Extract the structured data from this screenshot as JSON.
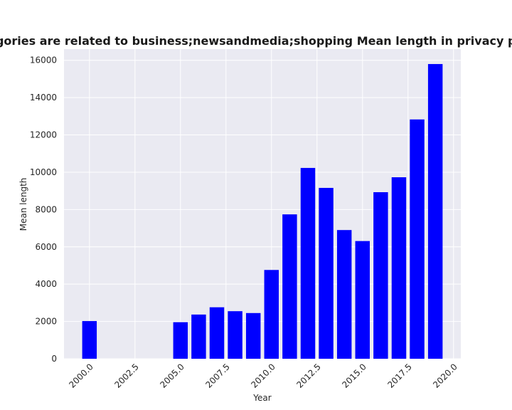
{
  "chart_data": {
    "type": "bar",
    "title": "n categories are related to business;newsandmedia;shopping Mean length in privacy policies b",
    "xlabel": "Year",
    "ylabel": "Mean length",
    "xlim": [
      1998.6,
      2020.4
    ],
    "ylim": [
      0,
      16600
    ],
    "xticks": [
      2000.0,
      2002.5,
      2005.0,
      2007.5,
      2010.0,
      2012.5,
      2015.0,
      2017.5,
      2020.0
    ],
    "xtick_labels": [
      "2000.0",
      "2002.5",
      "2005.0",
      "2007.5",
      "2010.0",
      "2012.5",
      "2015.0",
      "2017.5",
      "2020.0"
    ],
    "yticks": [
      0,
      2000,
      4000,
      6000,
      8000,
      10000,
      12000,
      14000,
      16000
    ],
    "ytick_labels": [
      "0",
      "2000",
      "4000",
      "6000",
      "8000",
      "10000",
      "12000",
      "14000",
      "16000"
    ],
    "grid": true,
    "bar_color": "#0000ff",
    "background_color": "#eaeaf2",
    "x": [
      2000,
      2005,
      2006,
      2007,
      2008,
      2009,
      2010,
      2011,
      2012,
      2013,
      2014,
      2015,
      2016,
      2017,
      2018,
      2019
    ],
    "values": [
      2020,
      1960,
      2370,
      2760,
      2550,
      2450,
      4760,
      7740,
      10230,
      9160,
      6900,
      6310,
      8930,
      9730,
      12830,
      15800
    ]
  }
}
